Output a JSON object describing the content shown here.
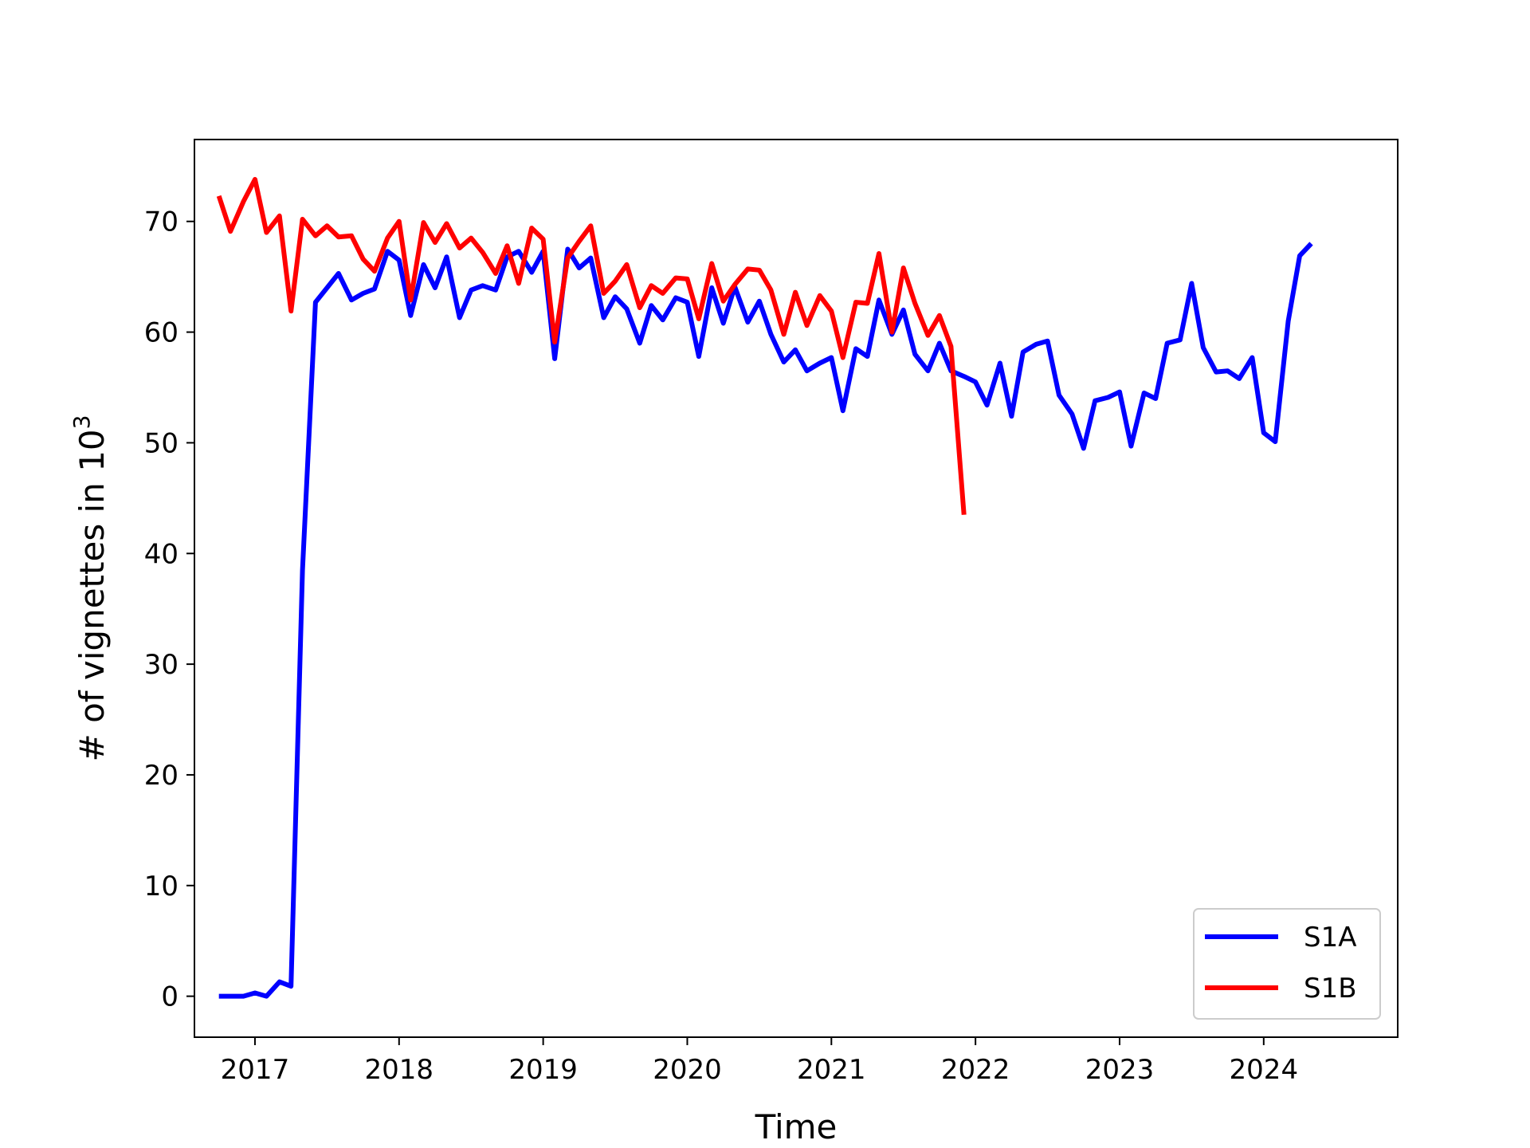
{
  "chart_data": {
    "type": "line",
    "title": "",
    "xlabel": "Time",
    "ylabel_main": "# of vignettes in 10",
    "ylabel_sup": "3",
    "xlim": [
      2016.58,
      2024.93
    ],
    "ylim": [
      -3.7,
      77.4
    ],
    "yticks": [
      0,
      10,
      20,
      30,
      40,
      50,
      60,
      70
    ],
    "xticks": [
      2017,
      2018,
      2019,
      2020,
      2021,
      2022,
      2023,
      2024
    ],
    "legend_position": "lower-right",
    "grid": false,
    "series": [
      {
        "name": "S1A",
        "color": "#0000ff",
        "x": [
          2016.75,
          2016.83,
          2016.92,
          2017.0,
          2017.08,
          2017.17,
          2017.25,
          2017.33,
          2017.42,
          2017.5,
          2017.58,
          2017.67,
          2017.75,
          2017.83,
          2017.92,
          2018.0,
          2018.08,
          2018.17,
          2018.25,
          2018.33,
          2018.42,
          2018.5,
          2018.58,
          2018.67,
          2018.75,
          2018.83,
          2018.92,
          2019.0,
          2019.08,
          2019.17,
          2019.25,
          2019.33,
          2019.42,
          2019.5,
          2019.58,
          2019.67,
          2019.75,
          2019.83,
          2019.92,
          2020.0,
          2020.08,
          2020.17,
          2020.25,
          2020.33,
          2020.42,
          2020.5,
          2020.58,
          2020.67,
          2020.75,
          2020.83,
          2020.92,
          2021.0,
          2021.08,
          2021.17,
          2021.25,
          2021.33,
          2021.42,
          2021.5,
          2021.58,
          2021.67,
          2021.75,
          2021.83,
          2021.92,
          2022.0,
          2022.08,
          2022.17,
          2022.25,
          2022.33,
          2022.42,
          2022.5,
          2022.58,
          2022.67,
          2022.75,
          2022.83,
          2022.92,
          2023.0,
          2023.08,
          2023.17,
          2023.25,
          2023.33,
          2023.42,
          2023.5,
          2023.58,
          2023.67,
          2023.75,
          2023.83,
          2023.92,
          2024.0,
          2024.08,
          2024.17,
          2024.25,
          2024.33
        ],
        "y": [
          0.0,
          0.0,
          0.0,
          0.3,
          0.0,
          1.3,
          0.9,
          38.5,
          62.7,
          64.0,
          65.3,
          62.9,
          63.5,
          63.9,
          67.3,
          66.5,
          61.5,
          66.1,
          64.0,
          66.8,
          61.3,
          63.8,
          64.2,
          63.8,
          66.8,
          67.3,
          65.4,
          67.3,
          57.6,
          67.5,
          65.8,
          66.7,
          61.3,
          63.2,
          62.1,
          59.0,
          62.4,
          61.1,
          63.1,
          62.7,
          57.8,
          64.0,
          60.8,
          64.1,
          60.9,
          62.8,
          59.8,
          57.3,
          58.4,
          56.5,
          57.2,
          57.7,
          52.9,
          58.5,
          57.8,
          62.9,
          59.8,
          62.0,
          58.0,
          56.5,
          59.0,
          56.5,
          56.0,
          55.5,
          53.4,
          57.2,
          52.4,
          58.2,
          58.9,
          59.2,
          54.3,
          52.6,
          49.5,
          53.8,
          54.1,
          54.6,
          49.7,
          54.5,
          54.0,
          59.0,
          59.3,
          64.4,
          58.6,
          56.4,
          56.5,
          55.8,
          57.7,
          50.9,
          50.1,
          61.0,
          66.9,
          68.0
        ]
      },
      {
        "name": "S1B",
        "color": "#ff0000",
        "x": [
          2016.75,
          2016.83,
          2016.92,
          2017.0,
          2017.08,
          2017.17,
          2017.25,
          2017.33,
          2017.42,
          2017.5,
          2017.58,
          2017.67,
          2017.75,
          2017.83,
          2017.92,
          2018.0,
          2018.08,
          2018.17,
          2018.25,
          2018.33,
          2018.42,
          2018.5,
          2018.58,
          2018.67,
          2018.75,
          2018.83,
          2018.92,
          2019.0,
          2019.08,
          2019.17,
          2019.25,
          2019.33,
          2019.42,
          2019.5,
          2019.58,
          2019.67,
          2019.75,
          2019.83,
          2019.92,
          2020.0,
          2020.08,
          2020.17,
          2020.25,
          2020.33,
          2020.42,
          2020.5,
          2020.58,
          2020.67,
          2020.75,
          2020.83,
          2020.92,
          2021.0,
          2021.08,
          2021.17,
          2021.25,
          2021.33,
          2021.42,
          2021.5,
          2021.58,
          2021.67,
          2021.75,
          2021.83,
          2021.92
        ],
        "y": [
          72.3,
          69.1,
          71.8,
          73.8,
          69.0,
          70.5,
          61.9,
          70.2,
          68.7,
          69.6,
          68.6,
          68.7,
          66.6,
          65.5,
          68.5,
          70.0,
          62.9,
          69.9,
          68.1,
          69.8,
          67.6,
          68.5,
          67.2,
          65.3,
          67.8,
          64.4,
          69.4,
          68.4,
          59.1,
          66.7,
          68.2,
          69.6,
          63.5,
          64.6,
          66.1,
          62.2,
          64.2,
          63.5,
          64.9,
          64.8,
          61.2,
          66.2,
          62.8,
          64.3,
          65.7,
          65.6,
          63.8,
          59.8,
          63.6,
          60.6,
          63.3,
          61.9,
          57.7,
          62.7,
          62.6,
          67.1,
          60.0,
          65.8,
          62.6,
          59.7,
          61.5,
          58.7,
          43.5
        ]
      }
    ]
  }
}
